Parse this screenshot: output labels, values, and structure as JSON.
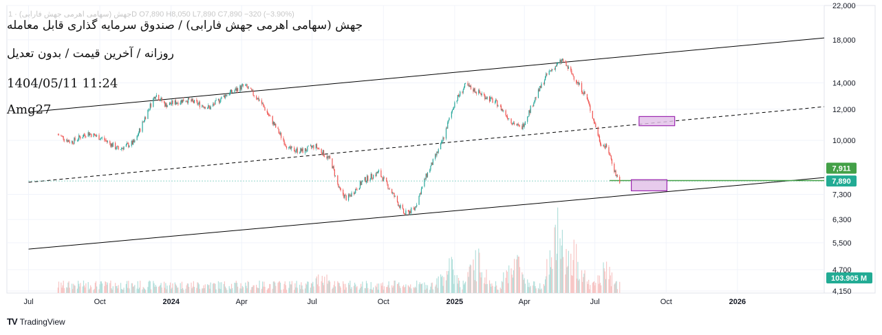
{
  "header": {
    "ohlc_line": "جهش (سهامی اهرمی جهش فارابی) · 1D  O7,890  H8,050  L7,890  C7,890  −320 (−3.90%)",
    "title": "جهش (سهامی اهرمی جهش فارابی) / صندوق سرمایه گذاری قابل معامله",
    "subtitle": "روزانه / آخرین قیمت / بدون تعدیل",
    "timestamp": "1404/05/11 11:24",
    "author": "Amg27"
  },
  "branding": {
    "logo": "TV",
    "name": "TradingView"
  },
  "colors": {
    "up": "#26a69a",
    "down": "#ef5350",
    "last_price": "#22ab94",
    "box_fill": "#e1bee7",
    "box_stroke": "#9c27b0",
    "green_line": "#43a047"
  },
  "chart_data": {
    "type": "candlestick",
    "y_scale": "log",
    "ylim": [
      4100,
      22000
    ],
    "y_ticks": [
      "22,000",
      "18,000",
      "14,000",
      "12,000",
      "10,000",
      "7,300",
      "6,300",
      "5,500",
      "4,700",
      "4,150"
    ],
    "y_tick_values": [
      22000,
      18000,
      14000,
      12000,
      10000,
      7300,
      6300,
      5500,
      4700,
      4150
    ],
    "x_range": [
      "2023-06-03",
      "2026-04-23"
    ],
    "x_ticks": [
      {
        "label": "Jul",
        "date": "2023-07-01",
        "bold": false
      },
      {
        "label": "Oct",
        "date": "2023-10-01",
        "bold": false
      },
      {
        "label": "2024",
        "date": "2024-01-01",
        "bold": true
      },
      {
        "label": "Apr",
        "date": "2024-04-01",
        "bold": false
      },
      {
        "label": "Jul",
        "date": "2024-07-01",
        "bold": false
      },
      {
        "label": "Oct",
        "date": "2024-10-01",
        "bold": false
      },
      {
        "label": "2025",
        "date": "2025-01-01",
        "bold": true
      },
      {
        "label": "Apr",
        "date": "2025-04-01",
        "bold": false
      },
      {
        "label": "Jul",
        "date": "2025-07-01",
        "bold": false
      },
      {
        "label": "Oct",
        "date": "2025-10-01",
        "bold": false
      },
      {
        "label": "2026",
        "date": "2026-01-01",
        "bold": true
      }
    ],
    "price_path": [
      [
        "2023-08-08",
        10350
      ],
      [
        "2023-08-25",
        9900
      ],
      [
        "2023-09-15",
        10450
      ],
      [
        "2023-10-05",
        10100
      ],
      [
        "2023-10-25",
        9500
      ],
      [
        "2023-11-15",
        9900
      ],
      [
        "2023-12-01",
        11800
      ],
      [
        "2023-12-12",
        13100
      ],
      [
        "2023-12-25",
        12300
      ],
      [
        "2024-01-20",
        12700
      ],
      [
        "2024-02-20",
        12100
      ],
      [
        "2024-03-10",
        13000
      ],
      [
        "2024-04-05",
        13800
      ],
      [
        "2024-04-25",
        12600
      ],
      [
        "2024-05-15",
        10800
      ],
      [
        "2024-06-01",
        9500
      ],
      [
        "2024-06-20",
        9400
      ],
      [
        "2024-07-05",
        9700
      ],
      [
        "2024-07-25",
        8900
      ],
      [
        "2024-08-05",
        7500
      ],
      [
        "2024-08-15",
        7100
      ],
      [
        "2024-09-05",
        7900
      ],
      [
        "2024-09-25",
        8300
      ],
      [
        "2024-10-10",
        7500
      ],
      [
        "2024-10-28",
        6500
      ],
      [
        "2024-11-10",
        6700
      ],
      [
        "2024-11-25",
        8100
      ],
      [
        "2024-12-15",
        9800
      ],
      [
        "2025-01-01",
        12500
      ],
      [
        "2025-01-15",
        13800
      ],
      [
        "2025-02-05",
        13100
      ],
      [
        "2025-02-25",
        12400
      ],
      [
        "2025-03-15",
        11200
      ],
      [
        "2025-03-28",
        10700
      ],
      [
        "2025-04-15",
        12800
      ],
      [
        "2025-05-01",
        14800
      ],
      [
        "2025-05-20",
        16000
      ],
      [
        "2025-06-05",
        14400
      ],
      [
        "2025-06-20",
        12900
      ],
      [
        "2025-07-01",
        11000
      ],
      [
        "2025-07-08",
        9900
      ],
      [
        "2025-07-18",
        9500
      ],
      [
        "2025-07-28",
        8200
      ],
      [
        "2025-08-02",
        7890
      ]
    ],
    "volume_range": [
      0,
      130
    ],
    "volume_peaks": [
      {
        "date": "2024-07-15",
        "value": 40
      },
      {
        "date": "2024-12-25",
        "value": 60
      },
      {
        "date": "2025-01-30",
        "value": 70
      },
      {
        "date": "2025-03-20",
        "value": 75
      },
      {
        "date": "2025-05-15",
        "value": 130
      },
      {
        "date": "2025-06-05",
        "value": 80
      },
      {
        "date": "2025-07-15",
        "value": 50
      }
    ],
    "trend_lines": [
      {
        "style": "solid",
        "start": [
          "2023-07-01",
          11800
        ],
        "end": [
          "2026-04-23",
          18200
        ]
      },
      {
        "style": "solid",
        "start": [
          "2023-07-01",
          5300
        ],
        "end": [
          "2026-04-23",
          8050
        ]
      },
      {
        "style": "dashed",
        "start": [
          "2023-07-01",
          7830
        ],
        "end": [
          "2026-04-23",
          12180
        ]
      }
    ],
    "price_line": {
      "value": 7890,
      "style": "dotted",
      "start": "2023-07-01"
    },
    "horizontal_segment": {
      "value": 7911,
      "start": "2025-07-20",
      "end": "2026-04-23"
    },
    "boxes": [
      {
        "x": [
          "2025-08-27",
          "2025-10-12"
        ],
        "y": [
          10900,
          11500
        ]
      },
      {
        "x": [
          "2025-08-17",
          "2025-10-02"
        ],
        "y": [
          7450,
          7950
        ]
      }
    ],
    "price_labels": [
      {
        "text": "7,911",
        "value": 7911,
        "color": "#43a047"
      },
      {
        "text": "7,890",
        "value": 7890,
        "color": "#22ab94"
      }
    ],
    "volume_label": {
      "text": "103.905 M",
      "color": "#22ab94"
    }
  }
}
